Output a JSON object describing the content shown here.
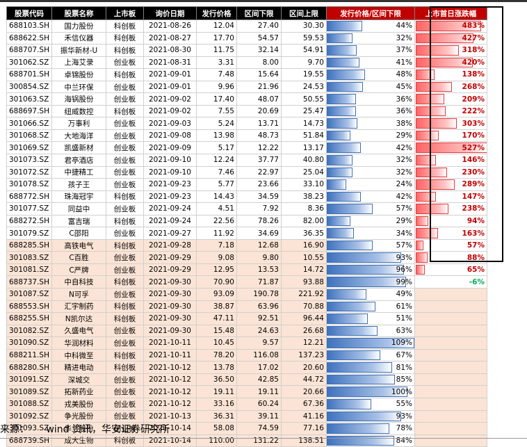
{
  "headers": [
    "股票代码",
    "股票名称",
    "上市板",
    "询价日期",
    "发行价格",
    "区间下限",
    "区间上限",
    "发行价格/区间下限",
    "上市首日涨跌幅"
  ],
  "rows": [
    {
      "code": "688103.SH",
      "name": "国力股份",
      "board": "科创板",
      "date": "2021-08-26",
      "price": "12.04",
      "low": "27.40",
      "high": "30.30",
      "ratio": "44%",
      "ratio_v": 0.44,
      "gain": "483%",
      "gain_v": 483
    },
    {
      "code": "688622.SH",
      "name": "禾信仪器",
      "board": "科创板",
      "date": "2021-08-27",
      "price": "17.70",
      "low": "54.57",
      "high": "59.53",
      "ratio": "32%",
      "ratio_v": 0.32,
      "gain": "427%",
      "gain_v": 427
    },
    {
      "code": "688707.SH",
      "name": "振华新材-U",
      "board": "科创板",
      "date": "2021-08-30",
      "price": "11.75",
      "low": "32.14",
      "high": "54.91",
      "ratio": "37%",
      "ratio_v": 0.37,
      "gain": "318%",
      "gain_v": 318
    },
    {
      "code": "301062.SZ",
      "name": "上海艾录",
      "board": "创业板",
      "date": "2021-08-31",
      "price": "3.31",
      "low": "8.00",
      "high": "9.70",
      "ratio": "41%",
      "ratio_v": 0.41,
      "gain": "420%",
      "gain_v": 420
    },
    {
      "code": "688701.SH",
      "name": "卓锦股份",
      "board": "科创板",
      "date": "2021-09-01",
      "price": "7.48",
      "low": "15.64",
      "high": "19.55",
      "ratio": "48%",
      "ratio_v": 0.48,
      "gain": "138%",
      "gain_v": 138
    },
    {
      "code": "300854.SZ",
      "name": "中兰环保",
      "board": "创业板",
      "date": "2021-09-01",
      "price": "9.96",
      "low": "21.96",
      "high": "24.53",
      "ratio": "45%",
      "ratio_v": 0.45,
      "gain": "268%",
      "gain_v": 268
    },
    {
      "code": "301063.SZ",
      "name": "海锅股份",
      "board": "创业板",
      "date": "2021-09-02",
      "price": "17.40",
      "low": "48.07",
      "high": "50.55",
      "ratio": "36%",
      "ratio_v": 0.36,
      "gain": "209%",
      "gain_v": 209
    },
    {
      "code": "688697.SH",
      "name": "纽威数控",
      "board": "科创板",
      "date": "2021-09-02",
      "price": "7.55",
      "low": "20.69",
      "high": "25.47",
      "ratio": "36%",
      "ratio_v": 0.36,
      "gain": "222%",
      "gain_v": 222
    },
    {
      "code": "301066.SZ",
      "name": "万事利",
      "board": "创业板",
      "date": "2021-09-03",
      "price": "5.24",
      "low": "13.71",
      "high": "14.73",
      "ratio": "38%",
      "ratio_v": 0.38,
      "gain": "303%",
      "gain_v": 303
    },
    {
      "code": "301068.SZ",
      "name": "大地海洋",
      "board": "创业板",
      "date": "2021-09-08",
      "price": "13.98",
      "low": "48.73",
      "high": "51.84",
      "ratio": "29%",
      "ratio_v": 0.29,
      "gain": "170%",
      "gain_v": 170
    },
    {
      "code": "301069.SZ",
      "name": "凯盛新材",
      "board": "创业板",
      "date": "2021-09-09",
      "price": "5.17",
      "low": "12.22",
      "high": "13.17",
      "ratio": "42%",
      "ratio_v": 0.42,
      "gain": "527%",
      "gain_v": 527
    },
    {
      "code": "301073.SZ",
      "name": "君亭酒店",
      "board": "创业板",
      "date": "2021-09-10",
      "price": "12.24",
      "low": "37.77",
      "high": "40.80",
      "ratio": "32%",
      "ratio_v": 0.32,
      "gain": "146%",
      "gain_v": 146
    },
    {
      "code": "301072.SZ",
      "name": "中捷精工",
      "board": "创业板",
      "date": "2021-09-10",
      "price": "7.46",
      "low": "22.97",
      "high": "25.04",
      "ratio": "32%",
      "ratio_v": 0.32,
      "gain": "230%",
      "gain_v": 230
    },
    {
      "code": "301078.SZ",
      "name": "孩子王",
      "board": "创业板",
      "date": "2021-09-23",
      "price": "5.77",
      "low": "23.66",
      "high": "33.10",
      "ratio": "24%",
      "ratio_v": 0.24,
      "gain": "289%",
      "gain_v": 289
    },
    {
      "code": "688772.SH",
      "name": "珠海冠宇",
      "board": "科创板",
      "date": "2021-09-23",
      "price": "14.43",
      "low": "34.59",
      "high": "38.23",
      "ratio": "42%",
      "ratio_v": 0.42,
      "gain": "147%",
      "gain_v": 147
    },
    {
      "code": "301077.SZ",
      "name": "同益中",
      "board": "创业板",
      "date": "2021-09-24",
      "price": "4.51",
      "low": "7.92",
      "high": "8.36",
      "ratio": "57%",
      "ratio_v": 0.57,
      "gain": "238%",
      "gain_v": 238
    },
    {
      "code": "688272.SH",
      "name": "富吉瑞",
      "board": "科创板",
      "date": "2021-09-24",
      "price": "22.56",
      "low": "78.26",
      "high": "82.00",
      "ratio": "29%",
      "ratio_v": 0.29,
      "gain": "94%",
      "gain_v": 94
    },
    {
      "code": "301079.SZ",
      "name": "C邵阳",
      "board": "创业板",
      "date": "2021-09-27",
      "price": "11.92",
      "low": "34.69",
      "high": "36.35",
      "ratio": "34%",
      "ratio_v": 0.34,
      "gain": "163%",
      "gain_v": 163
    },
    {
      "code": "688285.SH",
      "name": "高铁电气",
      "board": "科创板",
      "date": "2021-09-28",
      "price": "7.18",
      "low": "12.68",
      "high": "16.90",
      "ratio": "57%",
      "ratio_v": 0.57,
      "gain": "57%",
      "gain_v": 57
    },
    {
      "code": "301083.SZ",
      "name": "C百胜",
      "board": "创业板",
      "date": "2021-09-29",
      "price": "9.08",
      "low": "9.80",
      "high": "10.55",
      "ratio": "93%",
      "ratio_v": 0.93,
      "gain": "88%",
      "gain_v": 88
    },
    {
      "code": "301081.SZ",
      "name": "C严牌",
      "board": "创业板",
      "date": "2021-09-29",
      "price": "12.95",
      "low": "13.53",
      "high": "14.72",
      "ratio": "96%",
      "ratio_v": 0.96,
      "gain": "65%",
      "gain_v": 65
    },
    {
      "code": "688737.SH",
      "name": "中自科技",
      "board": "科创板",
      "date": "2021-09-30",
      "price": "70.90",
      "low": "71.87",
      "high": "93.88",
      "ratio": "99%",
      "ratio_v": 0.99,
      "gain": "-6%",
      "gain_v": -6
    },
    {
      "code": "301087.SZ",
      "name": "N可孚",
      "board": "创业板",
      "date": "2021-09-30",
      "price": "93.09",
      "low": "190.78",
      "high": "221.92",
      "ratio": "49%",
      "ratio_v": 0.49,
      "gain": "",
      "gain_v": null
    },
    {
      "code": "688553.SH",
      "name": "汇宇制药",
      "board": "科创板",
      "date": "2021-09-30",
      "price": "38.87",
      "low": "63.96",
      "high": "70.88",
      "ratio": "61%",
      "ratio_v": 0.61,
      "gain": "",
      "gain_v": null
    },
    {
      "code": "688255.SH",
      "name": "N凯尔达",
      "board": "科创板",
      "date": "2021-09-30",
      "price": "47.11",
      "low": "92.51",
      "high": "96.44",
      "ratio": "51%",
      "ratio_v": 0.51,
      "gain": "",
      "gain_v": null
    },
    {
      "code": "301082.SZ",
      "name": "久盛电气",
      "board": "创业板",
      "date": "2021-09-30",
      "price": "15.48",
      "low": "24.63",
      "high": "26.68",
      "ratio": "63%",
      "ratio_v": 0.63,
      "gain": "",
      "gain_v": null
    },
    {
      "code": "301090.SZ",
      "name": "华润材料",
      "board": "创业板",
      "date": "2021-10-11",
      "price": "10.45",
      "low": "9.57",
      "high": "12.21",
      "ratio": "109%",
      "ratio_v": 1.09,
      "gain": "",
      "gain_v": null
    },
    {
      "code": "688211.SH",
      "name": "中科微至",
      "board": "科创板",
      "date": "2021-10-11",
      "price": "78.20",
      "low": "116.08",
      "high": "137.23",
      "ratio": "67%",
      "ratio_v": 0.67,
      "gain": "",
      "gain_v": null
    },
    {
      "code": "688280.SH",
      "name": "精进电动",
      "board": "科创板",
      "date": "2021-10-12",
      "price": "13.78",
      "low": "17.02",
      "high": "20.60",
      "ratio": "81%",
      "ratio_v": 0.81,
      "gain": "",
      "gain_v": null
    },
    {
      "code": "301091.SZ",
      "name": "深城交",
      "board": "创业板",
      "date": "2021-10-12",
      "price": "36.50",
      "low": "42.85",
      "high": "44.72",
      "ratio": "85%",
      "ratio_v": 0.85,
      "gain": "",
      "gain_v": null
    },
    {
      "code": "301089.SZ",
      "name": "拓新药业",
      "board": "创业板",
      "date": "2021-10-12",
      "price": "19.11",
      "low": "19.11",
      "high": "20.66",
      "ratio": "100%",
      "ratio_v": 1.0,
      "gain": "",
      "gain_v": null
    },
    {
      "code": "301088.SZ",
      "name": "戎美股份",
      "board": "创业板",
      "date": "2021-10-12",
      "price": "33.16",
      "low": "60.24",
      "high": "67.36",
      "ratio": "55%",
      "ratio_v": 0.55,
      "gain": "",
      "gain_v": null
    },
    {
      "code": "301092.SZ",
      "name": "争光股份",
      "board": "创业板",
      "date": "2021-10-13",
      "price": "36.31",
      "low": "39.11",
      "high": "41.16",
      "ratio": "93%",
      "ratio_v": 0.93,
      "gain": "",
      "gain_v": null
    },
    {
      "code": "301093.SZ",
      "name": "华兰股份",
      "board": "创业板",
      "date": "2021-10-14",
      "price": "58.08",
      "low": "74.59",
      "high": "77.16",
      "ratio": "78%",
      "ratio_v": 0.78,
      "gain": "",
      "gain_v": null
    },
    {
      "code": "688739.SH",
      "name": "成大生物",
      "board": "科创板",
      "date": "2021-10-14",
      "price": "110.00",
      "low": "131.22",
      "high": "138.51",
      "ratio": "84%",
      "ratio_v": 0.84,
      "gain": "",
      "gain_v": null
    }
  ],
  "peach_from_index": 18,
  "colors": {
    "header": "#000000",
    "header_red": "#c00000",
    "bar_blue": "#3f72be",
    "gain_red": "#ff6464",
    "gain_text": "#c00000",
    "neg_text": "#00b050",
    "peach": "#fbe4d5"
  },
  "source": {
    "label": "来源：",
    "text": "wind 资讯，华安证券研究所"
  }
}
